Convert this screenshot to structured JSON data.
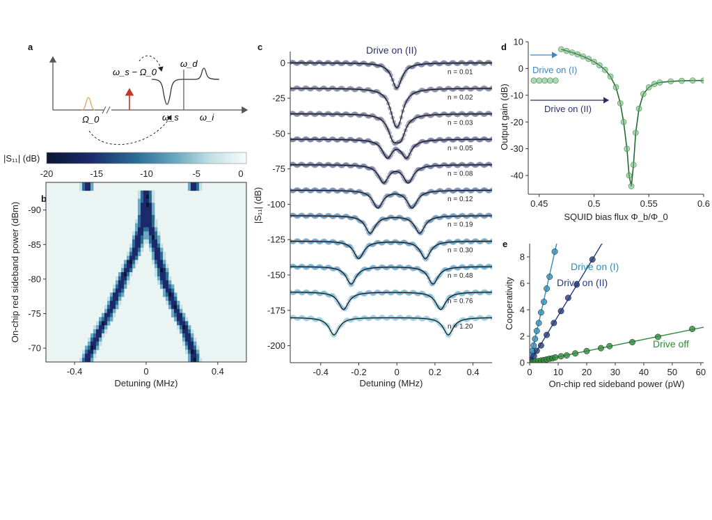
{
  "figure": {
    "panel_labels": [
      "a",
      "b",
      "c",
      "d",
      "e"
    ]
  },
  "schematic": {
    "labels": [
      "ω_s − Ω_0",
      "ω_d",
      "ω_s",
      "ω_i",
      "Ω_0"
    ],
    "colors": {
      "axis": "#555555",
      "pump_arrow": "#c0392b",
      "mode_peak": "#e8a060",
      "curve": "#333333"
    }
  },
  "colorbar": {
    "label": "|S₁₁| (dB)",
    "ticks": [
      "-20",
      "-15",
      "-10",
      "-5",
      "0"
    ],
    "range": [
      -20,
      0
    ],
    "colors": [
      "#0b1632",
      "#1c2a6b",
      "#2b6d96",
      "#6aa9c0",
      "#c2e0e4",
      "#f7fcfb"
    ]
  },
  "chart_data": [
    {
      "panel": "b",
      "type": "heatmap",
      "xlabel": "Detuning (MHz)",
      "ylabel": "On-chip red sideband power (dBm)",
      "xlim": [
        -0.56,
        0.56
      ],
      "ylim": [
        -68,
        -94
      ],
      "x_ticks": [
        "-0.4",
        "0",
        "0.4"
      ],
      "x_tick_values": [
        -0.4,
        0,
        0.4
      ],
      "y_ticks": [
        "-90",
        "-85",
        "-80",
        "-75",
        "-70"
      ],
      "y_tick_values": [
        -90,
        -85,
        -80,
        -75,
        -70
      ],
      "dip_center_mhz": 0.0,
      "dip_branches": [
        {
          "power_dbm": -93,
          "left_mhz": 0.0,
          "right_mhz": 0.0
        },
        {
          "power_dbm": -88,
          "left_mhz": -0.02,
          "right_mhz": 0.02
        },
        {
          "power_dbm": -84,
          "left_mhz": -0.06,
          "right_mhz": 0.06
        },
        {
          "power_dbm": -80,
          "left_mhz": -0.13,
          "right_mhz": 0.1
        },
        {
          "power_dbm": -76,
          "left_mhz": -0.19,
          "right_mhz": 0.16
        },
        {
          "power_dbm": -72,
          "left_mhz": -0.27,
          "right_mhz": 0.23
        },
        {
          "power_dbm": -68.5,
          "left_mhz": -0.33,
          "right_mhz": 0.27
        }
      ]
    },
    {
      "panel": "c",
      "type": "line",
      "title": "Drive on (II)",
      "xlabel": "Detuning (MHz)",
      "ylabel": "|S₁₁| (dB)",
      "xlim": [
        -0.56,
        0.5
      ],
      "ylim": [
        -212,
        8
      ],
      "x_ticks": [
        "-0.4",
        "-0.2",
        "0",
        "0.2",
        "0.4"
      ],
      "x_tick_values": [
        -0.4,
        -0.2,
        0,
        0.2,
        0.4
      ],
      "y_ticks": [
        "0",
        "-25",
        "-50",
        "-75",
        "-100",
        "-125",
        "-150",
        "-175",
        "-200"
      ],
      "y_tick_values": [
        0,
        -25,
        -50,
        -75,
        -100,
        -125,
        -150,
        -175,
        -200
      ],
      "series": [
        {
          "name": "n = 0.01",
          "offset_db": 0,
          "dips_mhz": [
            0.0
          ],
          "depth_db": 18
        },
        {
          "name": "n = 0.02",
          "offset_db": -18,
          "dips_mhz": [
            -0.01,
            0.01
          ],
          "depth_db": 16
        },
        {
          "name": "n = 0.03",
          "offset_db": -36,
          "dips_mhz": [
            -0.02,
            0.02
          ],
          "depth_db": 15
        },
        {
          "name": "n = 0.05",
          "offset_db": -54,
          "dips_mhz": [
            -0.05,
            0.05
          ],
          "depth_db": 13
        },
        {
          "name": "n = 0.08",
          "offset_db": -72,
          "dips_mhz": [
            -0.07,
            0.06
          ],
          "depth_db": 13
        },
        {
          "name": "n = 0.12",
          "offset_db": -90,
          "dips_mhz": [
            -0.1,
            0.08
          ],
          "depth_db": 13
        },
        {
          "name": "n = 0.19",
          "offset_db": -108,
          "dips_mhz": [
            -0.14,
            0.12
          ],
          "depth_db": 13
        },
        {
          "name": "n = 0.30",
          "offset_db": -126,
          "dips_mhz": [
            -0.2,
            0.15
          ],
          "depth_db": 13
        },
        {
          "name": "n = 0.48",
          "offset_db": -144,
          "dips_mhz": [
            -0.24,
            0.19
          ],
          "depth_db": 13
        },
        {
          "name": "n = 0.76",
          "offset_db": -162,
          "dips_mhz": [
            -0.28,
            0.23
          ],
          "depth_db": 13
        },
        {
          "name": "n = 1.20",
          "offset_db": -180,
          "dips_mhz": [
            -0.33,
            0.27
          ],
          "depth_db": 13
        }
      ]
    },
    {
      "panel": "d",
      "type": "scatter",
      "xlabel": "SQUID bias flux Φ_b/Φ_0",
      "ylabel": "Output gain (dB)",
      "xlim": [
        0.44,
        0.6
      ],
      "ylim": [
        -47,
        10
      ],
      "x_ticks": [
        "0.45",
        "0.5",
        "0.55",
        "0.6"
      ],
      "x_tick_values": [
        0.45,
        0.5,
        0.55,
        0.6
      ],
      "y_ticks": [
        "10",
        "0",
        "-10",
        "-20",
        "-30",
        "-40"
      ],
      "y_tick_values": [
        10,
        0,
        -10,
        -20,
        -30,
        -40
      ],
      "annotations": [
        "Drive on (I)",
        "Drive on (II)"
      ],
      "annotation_colors": [
        "#3a86c8",
        "#2d2f6b"
      ],
      "points": [
        [
          0.445,
          -4.5
        ],
        [
          0.45,
          -4.5
        ],
        [
          0.455,
          -4.5
        ],
        [
          0.46,
          -4.5
        ],
        [
          0.465,
          -4.5
        ],
        [
          0.47,
          7.2
        ],
        [
          0.475,
          6.6
        ],
        [
          0.48,
          6.0
        ],
        [
          0.485,
          5.3
        ],
        [
          0.49,
          4.5
        ],
        [
          0.495,
          3.6
        ],
        [
          0.5,
          2.5
        ],
        [
          0.505,
          1.2
        ],
        [
          0.51,
          -0.5
        ],
        [
          0.515,
          -3.0
        ],
        [
          0.52,
          -7.0
        ],
        [
          0.524,
          -13.0
        ],
        [
          0.527,
          -20.0
        ],
        [
          0.53,
          -30.0
        ],
        [
          0.532,
          -40.0
        ],
        [
          0.534,
          -44.0
        ],
        [
          0.536,
          -36.0
        ],
        [
          0.538,
          -24.0
        ],
        [
          0.541,
          -15.0
        ],
        [
          0.545,
          -9.5
        ],
        [
          0.55,
          -7.0
        ],
        [
          0.555,
          -5.8
        ],
        [
          0.56,
          -5.2
        ],
        [
          0.57,
          -4.8
        ],
        [
          0.58,
          -4.6
        ],
        [
          0.59,
          -4.5
        ],
        [
          0.6,
          -4.5
        ]
      ]
    },
    {
      "panel": "e",
      "type": "scatter",
      "xlabel": "On-chip red sideband power (pW)",
      "ylabel": "Cooperativity",
      "xlim": [
        0,
        61
      ],
      "ylim": [
        0,
        9
      ],
      "x_ticks": [
        "0",
        "10",
        "20",
        "30",
        "40",
        "50",
        "60"
      ],
      "x_tick_values": [
        0,
        10,
        20,
        30,
        40,
        50,
        60
      ],
      "y_ticks": [
        "0",
        "2",
        "4",
        "6",
        "8"
      ],
      "y_tick_values": [
        0,
        2,
        4,
        6,
        8
      ],
      "series": [
        {
          "name": "Drive on (I)",
          "color": "#2f8fb8",
          "slope": 0.95,
          "x": [
            0.3,
            0.6,
            1.0,
            1.4,
            1.9,
            2.5,
            3.2,
            4.0,
            5.0,
            6.0,
            7.0,
            8.8
          ],
          "y": [
            0.3,
            0.6,
            0.9,
            1.3,
            1.8,
            2.4,
            3.0,
            3.8,
            4.6,
            5.6,
            6.5,
            8.4
          ]
        },
        {
          "name": "Drive on (II)",
          "color": "#243a7a",
          "slope": 0.355,
          "x": [
            0.5,
            1.5,
            2.5,
            4.0,
            6.0,
            8.5,
            11.0,
            13.5,
            16.5,
            22.0
          ],
          "y": [
            0.2,
            0.5,
            0.9,
            1.3,
            2.1,
            3.0,
            3.9,
            4.9,
            5.9,
            7.8
          ]
        },
        {
          "name": "Drive off",
          "color": "#2e8a3a",
          "slope": 0.044,
          "x": [
            1,
            2,
            3,
            4,
            5,
            6,
            7,
            8,
            9,
            11,
            13,
            16,
            20,
            25,
            28,
            36,
            45,
            57
          ],
          "y": [
            0.05,
            0.1,
            0.12,
            0.16,
            0.2,
            0.25,
            0.3,
            0.33,
            0.4,
            0.48,
            0.55,
            0.7,
            0.88,
            1.1,
            1.25,
            1.55,
            1.95,
            2.55
          ]
        }
      ]
    }
  ]
}
